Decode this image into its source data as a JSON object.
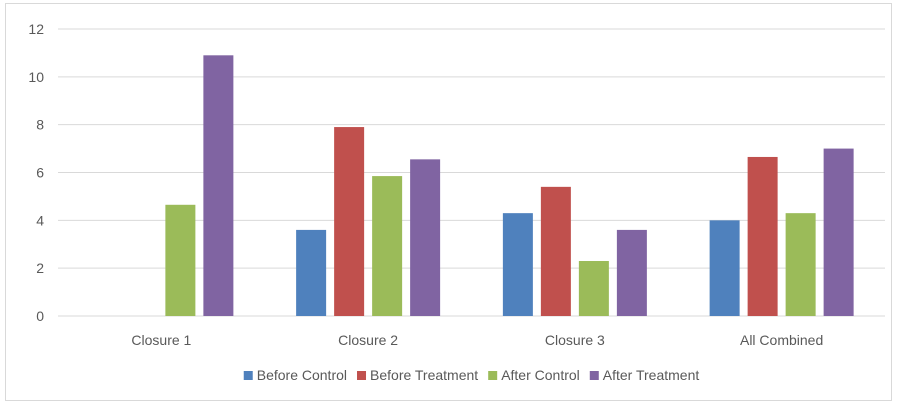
{
  "chart_data": {
    "type": "bar",
    "title": "",
    "xlabel": "",
    "ylabel": "",
    "categories": [
      "Closure 1",
      "Closure 2",
      "Closure 3",
      "All Combined"
    ],
    "ylim": [
      0,
      12
    ],
    "yticks": [
      0,
      2,
      4,
      6,
      8,
      10,
      12
    ],
    "grid": true,
    "legend_position": "bottom",
    "series": [
      {
        "name": "Before Control",
        "color": "#4f81bd",
        "values": [
          null,
          3.6,
          4.3,
          4.0
        ]
      },
      {
        "name": "Before Treatment",
        "color": "#c0504d",
        "values": [
          null,
          7.9,
          5.4,
          6.65
        ]
      },
      {
        "name": "After Control",
        "color": "#9bbb59",
        "values": [
          4.65,
          5.85,
          2.3,
          4.3
        ]
      },
      {
        "name": "After Treatment",
        "color": "#8064a2",
        "values": [
          10.9,
          6.55,
          3.6,
          7.0
        ]
      }
    ]
  }
}
